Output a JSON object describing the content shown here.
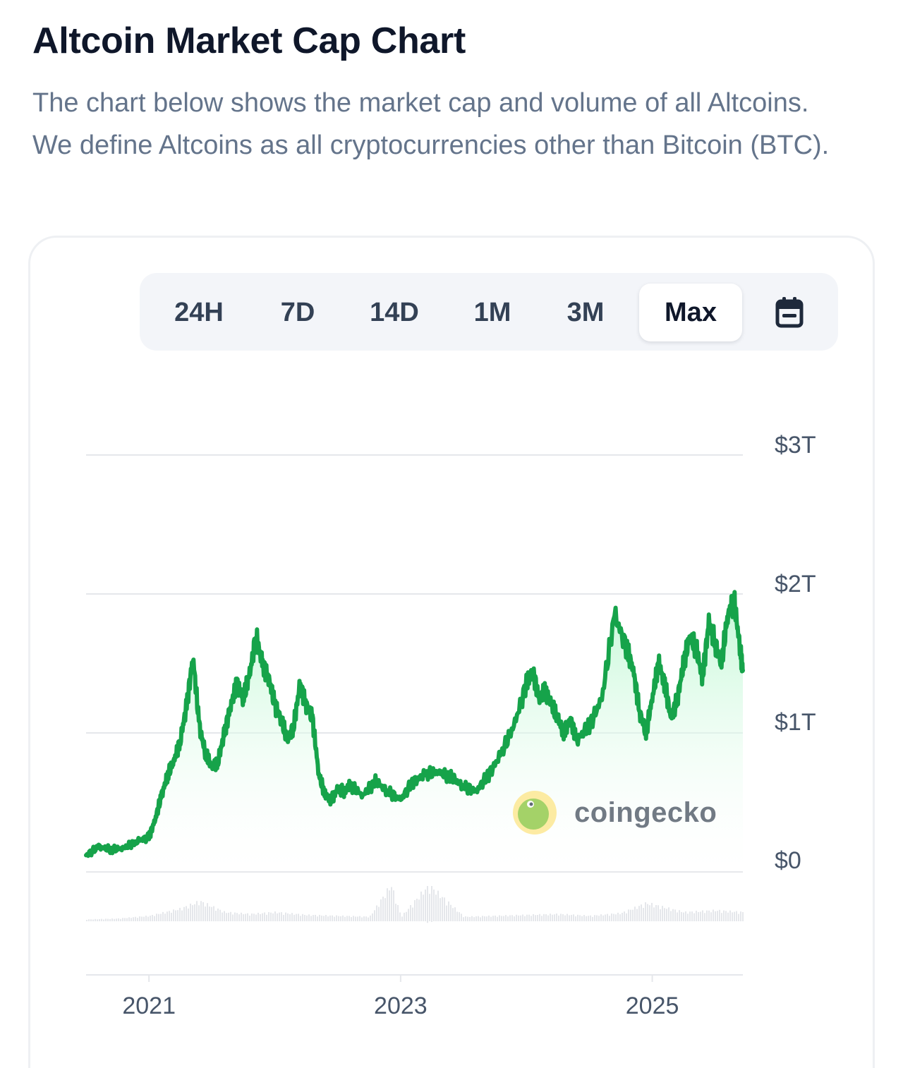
{
  "header": {
    "title": "Altcoin Market Cap Chart",
    "description": "The chart below shows the market cap and volume of all Altcoins. We define Altcoins as all cryptocurrencies other than Bitcoin (BTC)."
  },
  "range_selector": {
    "options": [
      "24H",
      "7D",
      "14D",
      "1M",
      "3M",
      "Max"
    ],
    "selected": "Max",
    "calendar_icon": "calendar-icon"
  },
  "watermark": {
    "text": "coingecko",
    "icon": "coingecko-logo"
  },
  "colors": {
    "line": "#16a34a",
    "area_top": "#bbf7d0",
    "grid": "#e5e7eb",
    "volume": "#e5e7eb"
  },
  "chart_data": {
    "type": "area",
    "x_unit": "year",
    "xlim": [
      2020.5,
      2025.72
    ],
    "ylim": [
      0,
      3
    ],
    "y_unit": "trillion USD",
    "y_ticks": [
      0,
      1,
      2,
      3
    ],
    "y_tick_labels": [
      "$0",
      "$1T",
      "$2T",
      "$3T"
    ],
    "x_ticks": [
      2021,
      2023,
      2025
    ],
    "x_tick_labels": [
      "2021",
      "2023",
      "2025"
    ],
    "grid": true,
    "series": [
      {
        "x": [
          2020.5,
          2020.6,
          2020.7,
          2020.8,
          2020.9,
          2021.0,
          2021.05,
          2021.1,
          2021.15,
          2021.2,
          2021.25,
          2021.3,
          2021.35,
          2021.4,
          2021.45,
          2021.5,
          2021.55,
          2021.6,
          2021.65,
          2021.7,
          2021.75,
          2021.8,
          2021.85,
          2021.9,
          2021.95,
          2022.0,
          2022.05,
          2022.1,
          2022.15,
          2022.2,
          2022.25,
          2022.3,
          2022.35,
          2022.4,
          2022.45,
          2022.5,
          2022.55,
          2022.6,
          2022.7,
          2022.8,
          2022.9,
          2023.0,
          2023.1,
          2023.2,
          2023.3,
          2023.4,
          2023.5,
          2023.6,
          2023.7,
          2023.8,
          2023.9,
          2024.0,
          2024.05,
          2024.1,
          2024.15,
          2024.2,
          2024.25,
          2024.3,
          2024.35,
          2024.4,
          2024.5,
          2024.6,
          2024.7,
          2024.8,
          2024.85,
          2024.9,
          2024.95,
          2025.0,
          2025.05,
          2025.1,
          2025.15,
          2025.2,
          2025.25,
          2025.3,
          2025.35,
          2025.4,
          2025.45,
          2025.5,
          2025.55,
          2025.6,
          2025.65,
          2025.7,
          2025.72
        ],
        "y": [
          0.12,
          0.18,
          0.16,
          0.17,
          0.22,
          0.25,
          0.38,
          0.55,
          0.7,
          0.8,
          0.95,
          1.2,
          1.55,
          1.05,
          0.85,
          0.75,
          0.8,
          1.0,
          1.2,
          1.35,
          1.25,
          1.42,
          1.7,
          1.5,
          1.4,
          1.2,
          1.1,
          0.95,
          1.05,
          1.35,
          1.2,
          1.1,
          0.7,
          0.55,
          0.52,
          0.6,
          0.58,
          0.62,
          0.55,
          0.65,
          0.58,
          0.52,
          0.65,
          0.7,
          0.72,
          0.68,
          0.62,
          0.58,
          0.7,
          0.85,
          1.05,
          1.35,
          1.45,
          1.25,
          1.3,
          1.2,
          1.1,
          1.0,
          1.1,
          0.95,
          1.05,
          1.25,
          1.85,
          1.6,
          1.45,
          1.15,
          1.0,
          1.25,
          1.5,
          1.35,
          1.1,
          1.25,
          1.5,
          1.7,
          1.6,
          1.4,
          1.8,
          1.65,
          1.5,
          1.85,
          1.95,
          1.6,
          1.45
        ]
      }
    ],
    "volume_series": {
      "x": [
        2020.5,
        2020.75,
        2021.0,
        2021.25,
        2021.4,
        2021.6,
        2021.8,
        2022.0,
        2022.25,
        2022.5,
        2022.75,
        2022.92,
        2023.0,
        2023.22,
        2023.5,
        2023.75,
        2024.0,
        2024.25,
        2024.5,
        2024.75,
        2024.95,
        2025.25,
        2025.5,
        2025.72
      ],
      "y": [
        0.02,
        0.03,
        0.06,
        0.14,
        0.22,
        0.1,
        0.08,
        0.1,
        0.07,
        0.06,
        0.05,
        0.4,
        0.05,
        0.4,
        0.05,
        0.06,
        0.07,
        0.08,
        0.06,
        0.09,
        0.2,
        0.1,
        0.12,
        0.1
      ]
    }
  }
}
